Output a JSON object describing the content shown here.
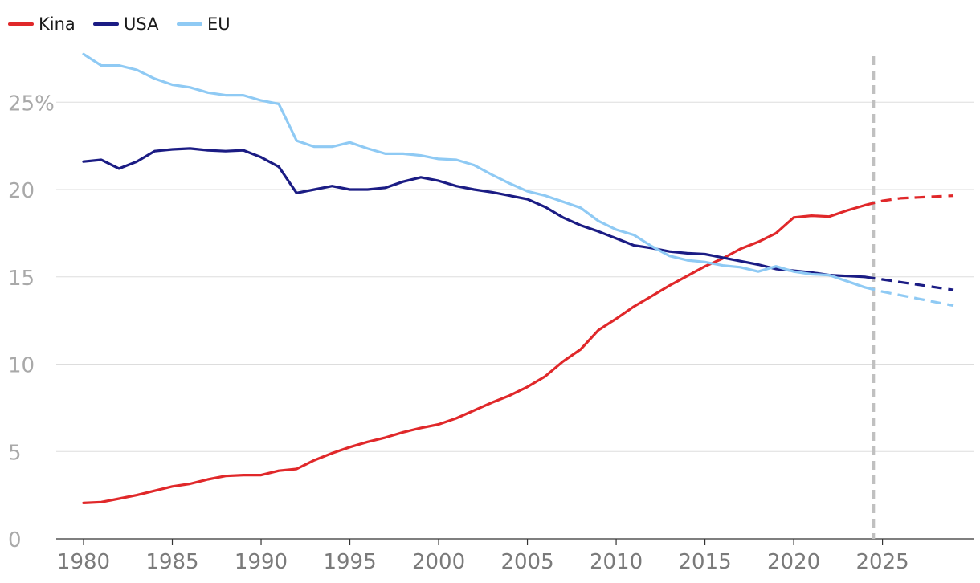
{
  "chart_data": {
    "type": "line",
    "title": "",
    "xlabel": "",
    "ylabel": "",
    "xlim": [
      1980,
      2029
    ],
    "ylim": [
      0,
      28
    ],
    "y_ticks": [
      0,
      5,
      10,
      15,
      20,
      25
    ],
    "y_tick_labels": [
      "0",
      "5",
      "10",
      "15",
      "20",
      "25%"
    ],
    "x_ticks": [
      1980,
      1985,
      1990,
      1995,
      2000,
      2005,
      2010,
      2015,
      2020,
      2025
    ],
    "x_tick_labels": [
      "1980",
      "1985",
      "1990",
      "1995",
      "2000",
      "2005",
      "2010",
      "2015",
      "2020",
      "2025"
    ],
    "grid": true,
    "legend_position": "top-left",
    "forecast_start": 2024.5,
    "series": [
      {
        "name": "Kina",
        "color": "#e0282a",
        "x": [
          1980,
          1981,
          1982,
          1983,
          1984,
          1985,
          1986,
          1987,
          1988,
          1989,
          1990,
          1991,
          1992,
          1993,
          1994,
          1995,
          1996,
          1997,
          1998,
          1999,
          2000,
          2001,
          2002,
          2003,
          2004,
          2005,
          2006,
          2007,
          2008,
          2009,
          2010,
          2011,
          2012,
          2013,
          2014,
          2015,
          2016,
          2017,
          2018,
          2019,
          2020,
          2021,
          2022,
          2023,
          2024,
          2025,
          2026,
          2027,
          2028,
          2029
        ],
        "values": [
          2.05,
          2.1,
          2.3,
          2.5,
          2.75,
          3.0,
          3.15,
          3.4,
          3.6,
          3.65,
          3.65,
          3.9,
          4.0,
          4.5,
          4.9,
          5.25,
          5.55,
          5.8,
          6.1,
          6.35,
          6.55,
          6.9,
          7.35,
          7.8,
          8.2,
          8.7,
          9.3,
          10.15,
          10.85,
          11.95,
          12.6,
          13.3,
          13.9,
          14.5,
          15.05,
          15.6,
          16.05,
          16.6,
          17.0,
          17.5,
          18.4,
          18.5,
          18.45,
          18.8,
          19.1,
          19.35,
          19.5,
          19.55,
          19.6,
          19.65
        ],
        "forecast_from": 2024
      },
      {
        "name": "USA",
        "color": "#1b1c84",
        "x": [
          1980,
          1981,
          1982,
          1983,
          1984,
          1985,
          1986,
          1987,
          1988,
          1989,
          1990,
          1991,
          1992,
          1993,
          1994,
          1995,
          1996,
          1997,
          1998,
          1999,
          2000,
          2001,
          2002,
          2003,
          2004,
          2005,
          2006,
          2007,
          2008,
          2009,
          2010,
          2011,
          2012,
          2013,
          2014,
          2015,
          2016,
          2017,
          2018,
          2019,
          2020,
          2021,
          2022,
          2023,
          2024,
          2025,
          2026,
          2027,
          2028,
          2029
        ],
        "values": [
          21.6,
          21.7,
          21.2,
          21.6,
          22.2,
          22.3,
          22.35,
          22.25,
          22.2,
          22.25,
          21.85,
          21.3,
          19.8,
          20.0,
          20.2,
          20.0,
          20.0,
          20.1,
          20.45,
          20.7,
          20.5,
          20.2,
          20.0,
          19.85,
          19.65,
          19.45,
          19.0,
          18.4,
          17.95,
          17.6,
          17.2,
          16.8,
          16.65,
          16.45,
          16.35,
          16.3,
          16.1,
          15.9,
          15.7,
          15.45,
          15.35,
          15.25,
          15.1,
          15.05,
          15.0,
          14.85,
          14.7,
          14.55,
          14.4,
          14.25
        ],
        "forecast_from": 2024
      },
      {
        "name": "EU",
        "color": "#8fcaf4",
        "x": [
          1980,
          1981,
          1982,
          1983,
          1984,
          1985,
          1986,
          1987,
          1988,
          1989,
          1990,
          1991,
          1992,
          1993,
          1994,
          1995,
          1996,
          1997,
          1998,
          1999,
          2000,
          2001,
          2002,
          2003,
          2004,
          2005,
          2006,
          2007,
          2008,
          2009,
          2010,
          2011,
          2012,
          2013,
          2014,
          2015,
          2016,
          2017,
          2018,
          2019,
          2020,
          2021,
          2022,
          2023,
          2024,
          2025,
          2026,
          2027,
          2028,
          2029
        ],
        "values": [
          27.75,
          27.1,
          27.1,
          26.85,
          26.35,
          26.0,
          25.85,
          25.55,
          25.4,
          25.4,
          25.1,
          24.9,
          22.8,
          22.45,
          22.45,
          22.7,
          22.35,
          22.05,
          22.05,
          21.95,
          21.75,
          21.7,
          21.4,
          20.85,
          20.35,
          19.9,
          19.65,
          19.3,
          18.95,
          18.2,
          17.7,
          17.4,
          16.75,
          16.2,
          15.95,
          15.85,
          15.65,
          15.55,
          15.3,
          15.6,
          15.3,
          15.15,
          15.1,
          14.75,
          14.4,
          14.15,
          13.95,
          13.75,
          13.55,
          13.35
        ],
        "forecast_from": 2024
      }
    ]
  }
}
